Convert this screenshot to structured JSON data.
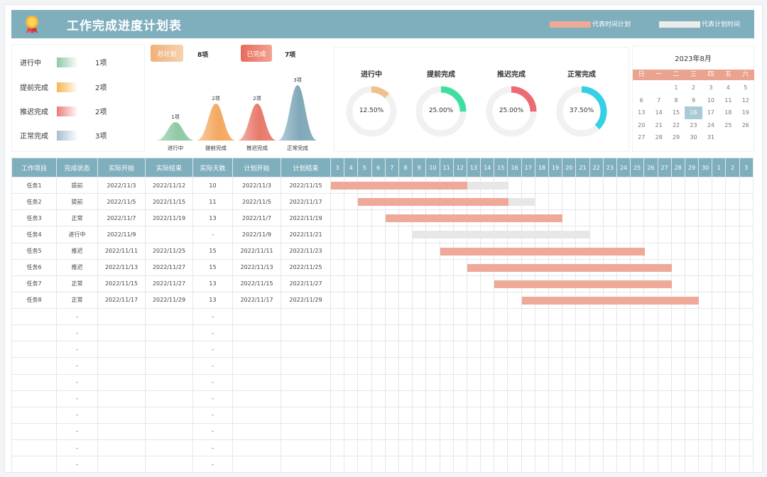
{
  "header": {
    "title": "工作完成进度计划表",
    "legend_actual": "代表时间计划",
    "legend_plan": "代表计划时间",
    "colors": {
      "accent": "#7fafbd",
      "actual_bar": "#eea998",
      "plan_bar": "#e7e7e7"
    }
  },
  "status_summary": [
    {
      "label": "进行中",
      "count": "1项",
      "color": "#8fc9a6"
    },
    {
      "label": "提前完成",
      "count": "2项",
      "color": "#f7b650"
    },
    {
      "label": "推迟完成",
      "count": "2项",
      "color": "#ec7b7d"
    },
    {
      "label": "正常完成",
      "count": "3项",
      "color": "#a7bfd0"
    }
  ],
  "totals": {
    "plan_label": "总计划",
    "plan_value": "8项",
    "done_label": "已完成",
    "done_value": "7项"
  },
  "chart_data": [
    {
      "type": "area",
      "title": "",
      "categories": [
        "进行中",
        "提前完成",
        "推迟完成",
        "正常完成"
      ],
      "values": [
        1,
        2,
        2,
        3
      ],
      "data_labels": [
        "1项",
        "2项",
        "2项",
        "3项"
      ],
      "colors": [
        "#8fc9a6",
        "#f4a860",
        "#e87a6a",
        "#7fa8b8"
      ]
    },
    {
      "type": "pie",
      "title": "progress donuts",
      "series": [
        {
          "name": "进行中",
          "value": 12.5,
          "label": "12.50%",
          "color": "#f2c08a"
        },
        {
          "name": "提前完成",
          "value": 25.0,
          "label": "25.00%",
          "color": "#3ee0a2"
        },
        {
          "name": "推迟完成",
          "value": 25.0,
          "label": "25.00%",
          "color": "#ee6a72"
        },
        {
          "name": "正常完成",
          "value": 37.5,
          "label": "37.50%",
          "color": "#35cfe8"
        }
      ]
    }
  ],
  "calendar": {
    "title": "2023年8月",
    "weekdays": [
      "日",
      "一",
      "二",
      "三",
      "四",
      "五",
      "六"
    ],
    "days": [
      "",
      "",
      "1",
      "2",
      "3",
      "4",
      "5",
      "6",
      "7",
      "8",
      "9",
      "10",
      "11",
      "12",
      "13",
      "14",
      "15",
      "16",
      "17",
      "18",
      "19",
      "20",
      "21",
      "22",
      "23",
      "24",
      "25",
      "26",
      "27",
      "28",
      "29",
      "30",
      "31"
    ],
    "today": "16"
  },
  "table": {
    "headers": [
      "工作项目",
      "完成状态",
      "实际开始",
      "实际结束",
      "实际天数",
      "计划开始",
      "计划结束"
    ],
    "day_headers": [
      "3",
      "4",
      "5",
      "6",
      "7",
      "8",
      "9",
      "10",
      "11",
      "12",
      "13",
      "14",
      "15",
      "16",
      "17",
      "18",
      "19",
      "20",
      "21",
      "22",
      "23",
      "24",
      "25",
      "26",
      "27",
      "28",
      "29",
      "30",
      "1",
      "2",
      "3"
    ],
    "rows": [
      {
        "name": "任务1",
        "status": "提前",
        "a_start": "2022/11/3",
        "a_end": "2022/11/12",
        "days": "10",
        "p_start": "2022/11/3",
        "p_end": "2022/11/15",
        "actual": [
          0,
          10
        ],
        "plan": [
          0,
          13
        ]
      },
      {
        "name": "任务2",
        "status": "提前",
        "a_start": "2022/11/5",
        "a_end": "2022/11/15",
        "days": "11",
        "p_start": "2022/11/5",
        "p_end": "2022/11/17",
        "actual": [
          2,
          13
        ],
        "plan": [
          2,
          15
        ]
      },
      {
        "name": "任务3",
        "status": "正常",
        "a_start": "2022/11/7",
        "a_end": "2022/11/19",
        "days": "13",
        "p_start": "2022/11/7",
        "p_end": "2022/11/19",
        "actual": [
          4,
          17
        ],
        "plan": [
          4,
          17
        ]
      },
      {
        "name": "任务4",
        "status": "进行中",
        "a_start": "2022/11/9",
        "a_end": "",
        "days": "-",
        "p_start": "2022/11/9",
        "p_end": "2022/11/21",
        "actual": null,
        "plan": [
          6,
          19
        ]
      },
      {
        "name": "任务5",
        "status": "推迟",
        "a_start": "2022/11/11",
        "a_end": "2022/11/25",
        "days": "15",
        "p_start": "2022/11/11",
        "p_end": "2022/11/23",
        "actual": [
          8,
          23
        ],
        "plan": [
          8,
          21
        ]
      },
      {
        "name": "任务6",
        "status": "推迟",
        "a_start": "2022/11/13",
        "a_end": "2022/11/27",
        "days": "15",
        "p_start": "2022/11/13",
        "p_end": "2022/11/25",
        "actual": [
          10,
          25
        ],
        "plan": [
          10,
          23
        ]
      },
      {
        "name": "任务7",
        "status": "正常",
        "a_start": "2022/11/15",
        "a_end": "2022/11/27",
        "days": "13",
        "p_start": "2022/11/15",
        "p_end": "2022/11/27",
        "actual": [
          12,
          25
        ],
        "plan": [
          12,
          25
        ]
      },
      {
        "name": "任务8",
        "status": "正常",
        "a_start": "2022/11/17",
        "a_end": "2022/11/29",
        "days": "13",
        "p_start": "2022/11/17",
        "p_end": "2022/11/29",
        "actual": [
          14,
          27
        ],
        "plan": [
          14,
          27
        ]
      }
    ],
    "empty_rows": 10,
    "empty_dash": "-"
  }
}
